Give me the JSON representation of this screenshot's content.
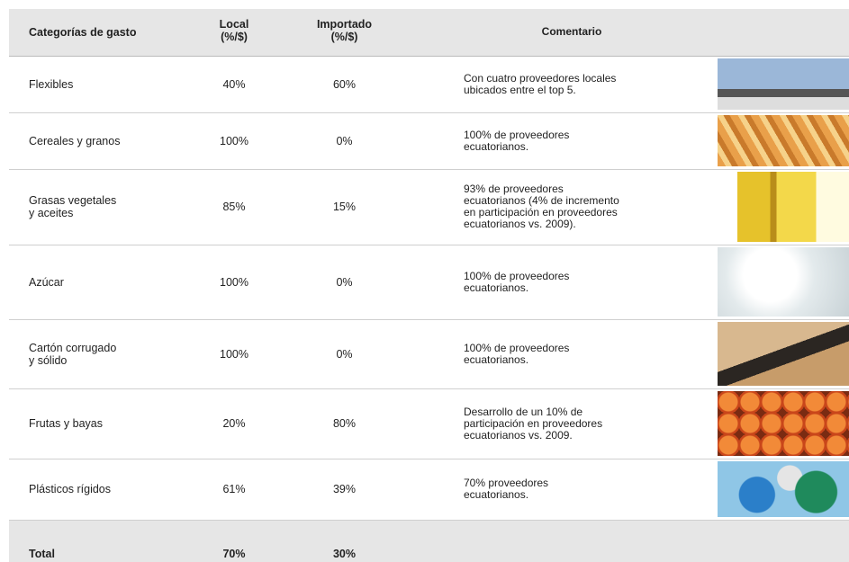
{
  "table": {
    "header": [
      "Categorías de gasto",
      "Local\n(%/$)",
      "Importado\n(%/$)",
      "Comentario"
    ],
    "rows": [
      [
        "Flexibles",
        "40%",
        "60%",
        "Con cuatro proveedores locales\nubicados entre el top 5."
      ],
      [
        "Cereales y granos",
        "100%",
        "0%",
        "100% de proveedores\necuatorianos."
      ],
      [
        "Grasas vegetales\ny aceites",
        "85%",
        "15%",
        "93% de proveedores\necuatorianos (4% de incremento\nen participación en proveedores\necuatorianos vs. 2009)."
      ],
      [
        "Azúcar",
        "100%",
        "0%",
        "100% de proveedores\necuatorianos."
      ],
      [
        "Cartón corrugado\ny sólido",
        "100%",
        "0%",
        "100% de proveedores\necuatorianos."
      ],
      [
        "Frutas y bayas",
        "20%",
        "80%",
        "Desarrollo de un 10% de\nparticipación en proveedores\necuatorianos vs. 2009."
      ],
      [
        "Plásticos rígidos",
        "61%",
        "39%",
        "70% proveedores\necuatorianos."
      ]
    ],
    "total": [
      "Total",
      "70%",
      "30%"
    ]
  }
}
